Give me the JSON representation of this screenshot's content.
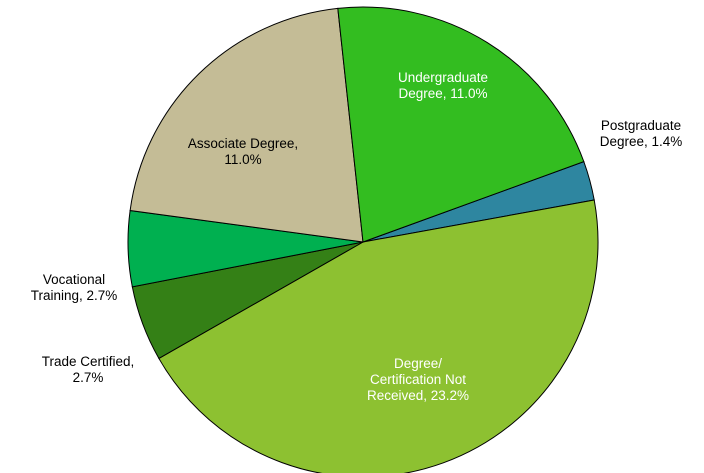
{
  "chart_data": {
    "type": "pie",
    "slices": [
      {
        "label_lines": [
          "Postgraduate",
          "Degree, 1.4%"
        ],
        "category": "Postgraduate Degree",
        "value": 1.4,
        "color": "#2e86a0",
        "label_color": "#000000"
      },
      {
        "label_lines": [
          "Degree/",
          "Certification Not",
          "Received, 23.2%"
        ],
        "category": "Degree/Certification Not Received",
        "value": 23.2,
        "color": "#8dc131",
        "label_color": "#ffffff"
      },
      {
        "label_lines": [
          "Trade Certified,",
          "2.7%"
        ],
        "category": "Trade Certified",
        "value": 2.7,
        "color": "#348016",
        "label_color": "#000000"
      },
      {
        "label_lines": [
          "Vocational",
          "Training, 2.7%"
        ],
        "category": "Vocational Training",
        "value": 2.7,
        "color": "#00b050",
        "label_color": "#000000"
      },
      {
        "label_lines": [
          "Associate Degree,",
          "11.0%"
        ],
        "category": "Associate Degree",
        "value": 11.0,
        "color": "#c4bc96",
        "label_color": "#000000"
      },
      {
        "label_lines": [
          "Undergraduate",
          "Degree, 11.0%"
        ],
        "category": "Undergraduate Degree",
        "value": 11.0,
        "color": "#33bd20",
        "label_color": "#ffffff"
      }
    ]
  }
}
